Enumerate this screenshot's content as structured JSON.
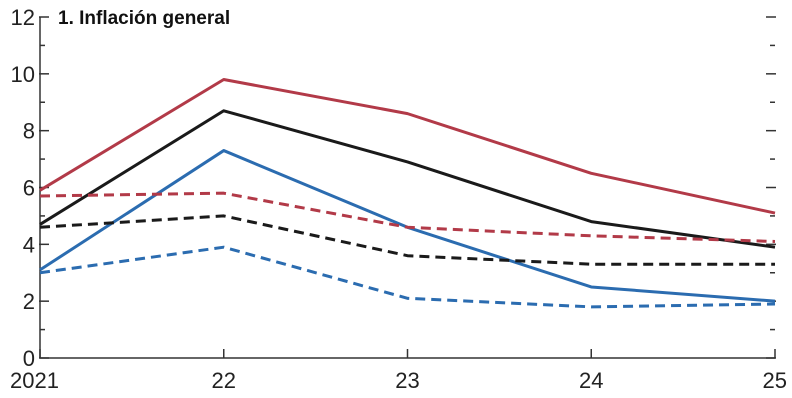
{
  "chart_data": {
    "type": "line",
    "title": "1. Inflación general",
    "x": [
      "2021",
      "22",
      "23",
      "24",
      "25"
    ],
    "y_ticks": [
      "0",
      "2",
      "4",
      "6",
      "8",
      "10",
      "12"
    ],
    "ylim": [
      0,
      12
    ],
    "grid": false,
    "legend": "none",
    "series": [
      {
        "values": [
          5.9,
          9.8,
          8.6,
          6.5,
          5.1
        ],
        "color": "#b23a48",
        "dash": "solid"
      },
      {
        "values": [
          4.7,
          8.7,
          6.9,
          4.8,
          3.9
        ],
        "color": "#1a1a1a",
        "dash": "solid"
      },
      {
        "values": [
          3.1,
          7.3,
          4.6,
          2.5,
          2.0
        ],
        "color": "#2b6cb0",
        "dash": "solid"
      },
      {
        "values": [
          5.7,
          5.8,
          4.6,
          4.3,
          4.1
        ],
        "color": "#b23a48",
        "dash": "dashed"
      },
      {
        "values": [
          4.6,
          5.0,
          3.6,
          3.3,
          3.3
        ],
        "color": "#1a1a1a",
        "dash": "dashed"
      },
      {
        "values": [
          3.0,
          3.9,
          2.1,
          1.8,
          1.9
        ],
        "color": "#2b6cb0",
        "dash": "dashed"
      }
    ]
  }
}
